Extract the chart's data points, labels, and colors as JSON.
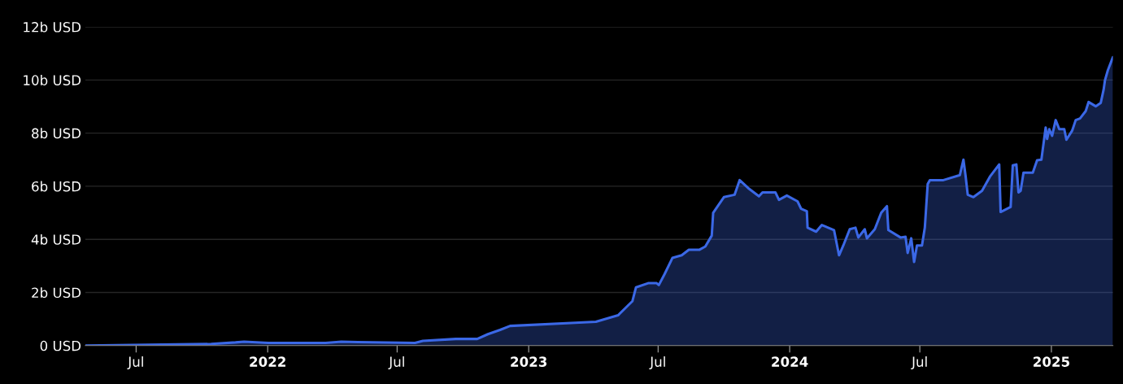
{
  "chart_data": {
    "type": "area",
    "x": [
      "2021-04-21",
      "2021-10-14",
      "2021-11-17",
      "2021-11-29",
      "2022-01-02",
      "2022-03-23",
      "2022-04-14",
      "2022-05-07",
      "2022-07-26",
      "2022-08-06",
      "2022-09-21",
      "2022-10-21",
      "2022-11-05",
      "2022-11-22",
      "2022-12-06",
      "2023-03-07",
      "2023-04-05",
      "2023-05-06",
      "2023-05-26",
      "2023-05-31",
      "2023-06-17",
      "2023-06-29",
      "2023-07-02",
      "2023-07-10",
      "2023-07-21",
      "2023-08-03",
      "2023-08-13",
      "2023-08-28",
      "2023-09-05",
      "2023-09-14",
      "2023-09-16",
      "2023-10-01",
      "2023-10-16",
      "2023-10-23",
      "2023-11-04",
      "2023-11-19",
      "2023-11-24",
      "2023-12-12",
      "2023-12-17",
      "2023-12-28",
      "2024-01-12",
      "2024-01-17",
      "2024-01-25",
      "2024-01-26",
      "2024-02-07",
      "2024-02-15",
      "2024-03-03",
      "2024-03-10",
      "2024-03-16",
      "2024-03-25",
      "2024-04-02",
      "2024-04-06",
      "2024-04-15",
      "2024-04-18",
      "2024-04-29",
      "2024-05-08",
      "2024-05-16",
      "2024-05-18",
      "2024-06-04",
      "2024-06-11",
      "2024-06-14",
      "2024-06-19",
      "2024-06-23",
      "2024-06-27",
      "2024-07-04",
      "2024-07-08",
      "2024-07-12",
      "2024-07-15",
      "2024-08-03",
      "2024-08-26",
      "2024-08-31",
      "2024-09-03",
      "2024-09-06",
      "2024-09-14",
      "2024-09-26",
      "2024-10-07",
      "2024-10-20",
      "2024-10-22",
      "2024-11-05",
      "2024-11-08",
      "2024-11-13",
      "2024-11-16",
      "2024-11-19",
      "2024-11-23",
      "2024-12-06",
      "2024-12-12",
      "2024-12-18",
      "2024-12-24",
      "2024-12-26",
      "2024-12-29",
      "2025-01-02",
      "2025-01-07",
      "2025-01-12",
      "2025-01-19",
      "2025-01-22",
      "2025-01-30",
      "2025-02-04",
      "2025-02-10",
      "2025-02-18",
      "2025-02-22",
      "2025-03-04",
      "2025-03-11",
      "2025-03-15",
      "2025-03-17",
      "2025-03-21",
      "2025-03-28"
    ],
    "series": [
      {
        "color": "#3b68e6",
        "values": [
          0,
          0.06,
          0.12,
          0.15,
          0.1,
          0.1,
          0.15,
          0.13,
          0.1,
          0.18,
          0.25,
          0.25,
          0.43,
          0.59,
          0.74,
          0.86,
          0.9,
          1.14,
          1.67,
          2.19,
          2.35,
          2.35,
          2.28,
          2.69,
          3.3,
          3.4,
          3.61,
          3.61,
          3.73,
          4.14,
          5.0,
          5.59,
          5.68,
          6.23,
          5.93,
          5.62,
          5.77,
          5.77,
          5.49,
          5.65,
          5.43,
          5.15,
          5.06,
          4.44,
          4.29,
          4.54,
          4.35,
          3.4,
          3.77,
          4.38,
          4.44,
          4.07,
          4.38,
          4.04,
          4.38,
          5.0,
          5.25,
          4.35,
          4.07,
          4.1,
          3.49,
          4.04,
          3.15,
          3.77,
          3.77,
          4.44,
          6.08,
          6.23,
          6.23,
          6.42,
          7.0,
          6.39,
          5.68,
          5.59,
          5.83,
          6.36,
          6.82,
          5.03,
          5.22,
          6.79,
          6.82,
          5.77,
          5.83,
          6.51,
          6.51,
          6.98,
          7.0,
          8.21,
          7.78,
          8.15,
          7.9,
          8.49,
          8.15,
          8.15,
          7.75,
          8.09,
          8.49,
          8.55,
          8.83,
          9.17,
          9.01,
          9.14,
          9.63,
          10.0,
          10.37,
          10.86
        ]
      }
    ],
    "xlim": [
      "2021-04-21",
      "2025-03-28"
    ],
    "xticks": [
      {
        "value": "2021-07-01",
        "label": "Jul"
      },
      {
        "value": "2022-01-01",
        "label": "2022"
      },
      {
        "value": "2022-07-01",
        "label": "Jul"
      },
      {
        "value": "2023-01-01",
        "label": "2023"
      },
      {
        "value": "2023-07-01",
        "label": "Jul"
      },
      {
        "value": "2024-01-01",
        "label": "2024"
      },
      {
        "value": "2024-07-01",
        "label": "Jul"
      },
      {
        "value": "2025-01-01",
        "label": "2025"
      }
    ],
    "ylim": [
      0,
      12
    ],
    "yticks": [
      {
        "value": 0,
        "label": "0 USD"
      },
      {
        "value": 2,
        "label": "2b USD"
      },
      {
        "value": 4,
        "label": "4b USD"
      },
      {
        "value": 6,
        "label": "6b USD"
      },
      {
        "value": 8,
        "label": "8b USD"
      },
      {
        "value": 10,
        "label": "10b USD"
      },
      {
        "value": 12,
        "label": "12b USD"
      }
    ],
    "grid": "y"
  }
}
